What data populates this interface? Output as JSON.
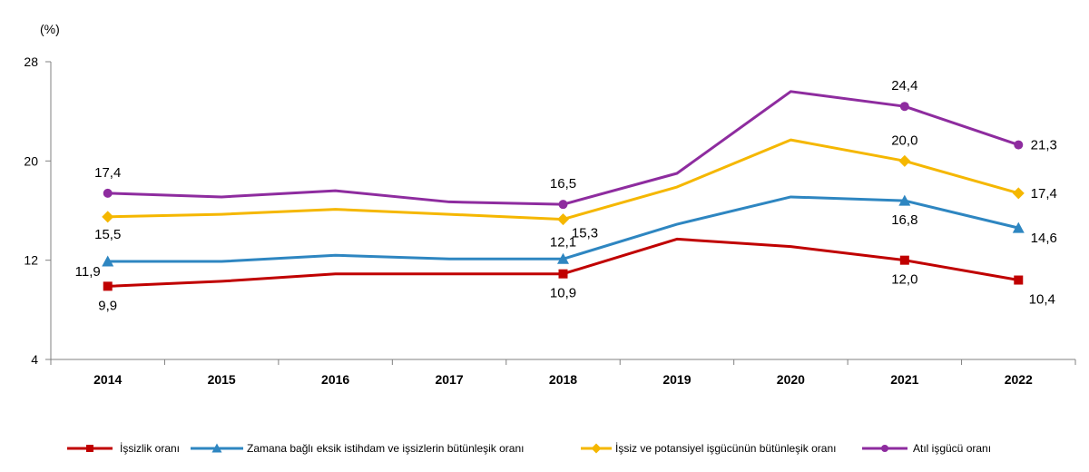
{
  "chart_data": {
    "type": "line",
    "ylabel": "(%)",
    "ylim": [
      4,
      28
    ],
    "yticks": [
      "4",
      "12",
      "20",
      "28"
    ],
    "categories": [
      "2014",
      "2015",
      "2016",
      "2017",
      "2018",
      "2019",
      "2020",
      "2021",
      "2022"
    ],
    "series": [
      {
        "name": "İşsizlik oranı",
        "color": "#c00000",
        "marker": "square",
        "values": [
          9.9,
          10.3,
          10.9,
          10.9,
          10.9,
          13.7,
          13.1,
          12.0,
          10.4
        ]
      },
      {
        "name": "Zamana bağlı eksik istihdam ve işsizlerin bütünleşik oranı",
        "color": "#2e86c1",
        "marker": "triangle",
        "values": [
          11.9,
          11.9,
          12.4,
          12.1,
          12.1,
          14.9,
          17.1,
          16.8,
          14.6
        ]
      },
      {
        "name": "İşsiz ve potansiyel işgücünün bütünleşik oranı",
        "color": "#f5b700",
        "marker": "diamond",
        "values": [
          15.5,
          15.7,
          16.1,
          15.7,
          15.3,
          17.9,
          21.7,
          20.0,
          17.4
        ]
      },
      {
        "name": "Atıl işgücü oranı",
        "color": "#8e2c9f",
        "marker": "circle",
        "values": [
          17.4,
          17.1,
          17.6,
          16.7,
          16.5,
          19.0,
          25.6,
          24.4,
          21.3
        ]
      }
    ],
    "data_labels": [
      {
        "series": 0,
        "index": 0,
        "text": "9,9"
      },
      {
        "series": 0,
        "index": 4,
        "text": "10,9"
      },
      {
        "series": 0,
        "index": 7,
        "text": "12,0"
      },
      {
        "series": 0,
        "index": 8,
        "text": "10,4"
      },
      {
        "series": 1,
        "index": 0,
        "text": "11,9"
      },
      {
        "series": 1,
        "index": 4,
        "text": "12,1"
      },
      {
        "series": 1,
        "index": 7,
        "text": "16,8"
      },
      {
        "series": 1,
        "index": 8,
        "text": "14,6"
      },
      {
        "series": 2,
        "index": 0,
        "text": "15,5"
      },
      {
        "series": 2,
        "index": 4,
        "text": "15,3"
      },
      {
        "series": 2,
        "index": 7,
        "text": "20,0"
      },
      {
        "series": 2,
        "index": 8,
        "text": "17,4"
      },
      {
        "series": 3,
        "index": 0,
        "text": "17,4"
      },
      {
        "series": 3,
        "index": 4,
        "text": "16,5"
      },
      {
        "series": 3,
        "index": 7,
        "text": "24,4"
      },
      {
        "series": 3,
        "index": 8,
        "text": "21,3"
      }
    ],
    "grid": false,
    "legend_position": "bottom"
  }
}
